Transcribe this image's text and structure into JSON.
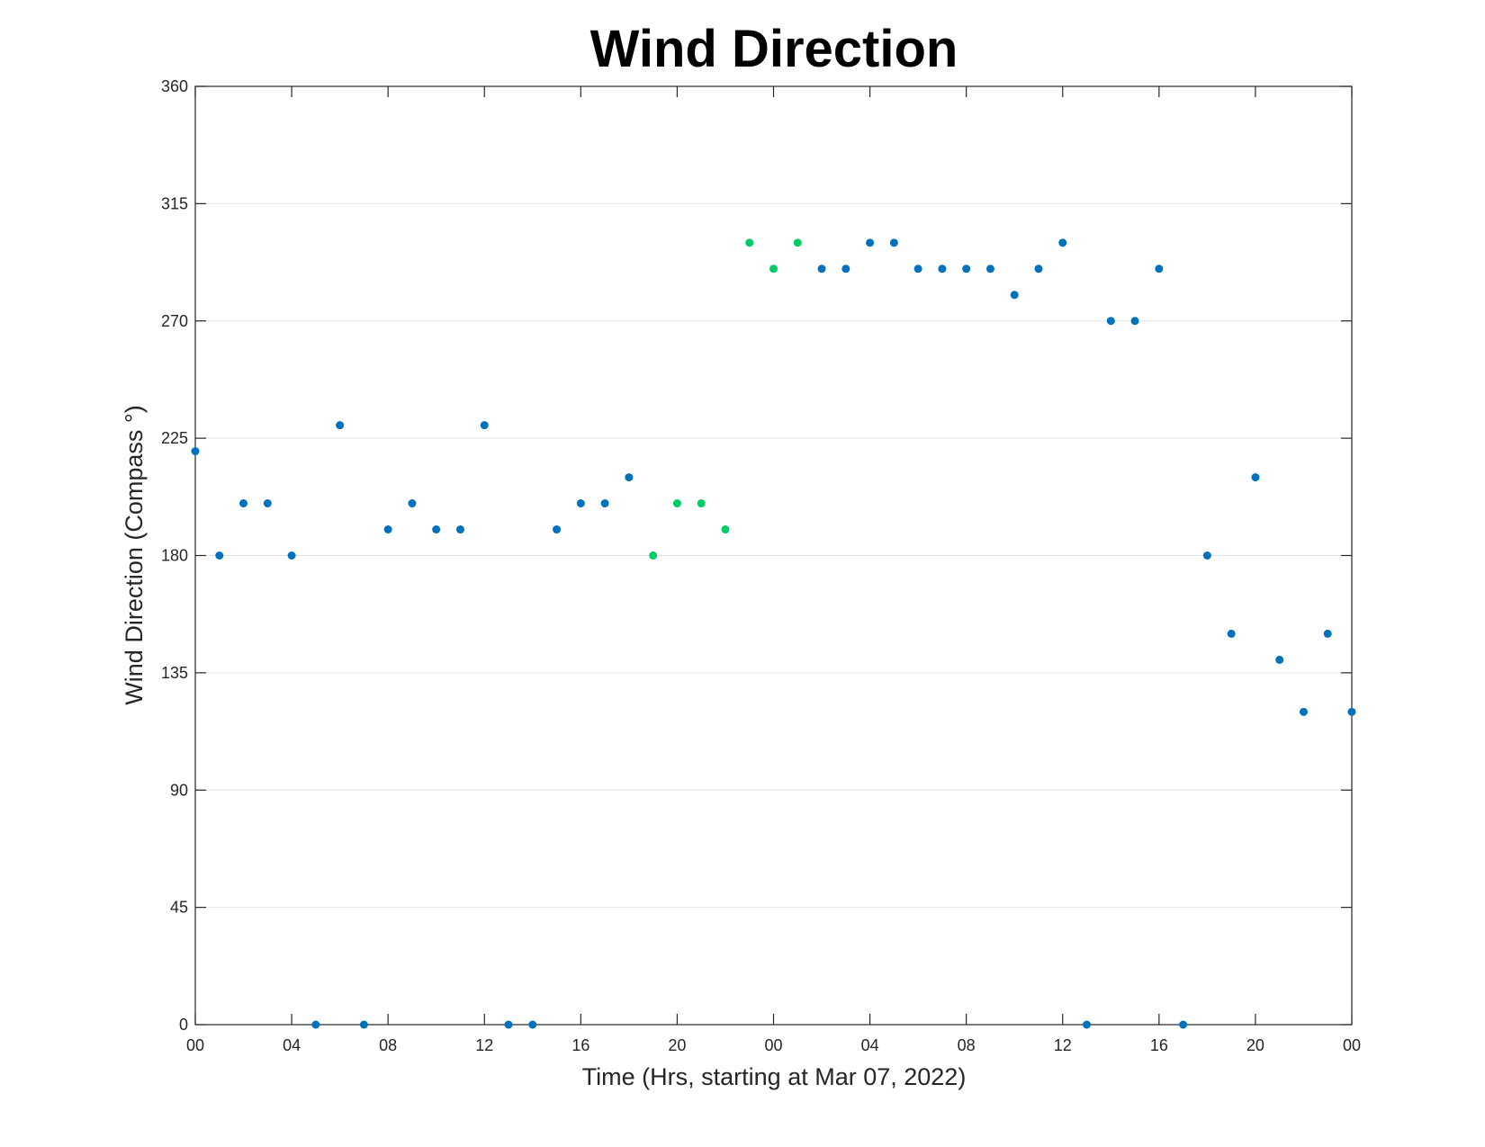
{
  "chart_data": {
    "type": "scatter",
    "title": "Wind Direction",
    "xlabel": "Time (Hrs, starting at Mar 07, 2022)",
    "ylabel": "Wind Direction (Compass °)",
    "xlim": [
      0,
      48
    ],
    "ylim": [
      0,
      360
    ],
    "x_tick_values": [
      0,
      4,
      8,
      12,
      16,
      20,
      24,
      28,
      32,
      36,
      40,
      44,
      48
    ],
    "x_tick_labels": [
      "00",
      "04",
      "08",
      "12",
      "16",
      "20",
      "00",
      "04",
      "08",
      "12",
      "16",
      "20",
      "00"
    ],
    "y_tick_values": [
      0,
      45,
      90,
      135,
      180,
      225,
      270,
      315,
      360
    ],
    "y_tick_labels": [
      "0",
      "45",
      "90",
      "135",
      "180",
      "225",
      "270",
      "315",
      "360"
    ],
    "grid": true,
    "colors": {
      "primary": "#0072bd",
      "highlight": "#00cc66"
    },
    "series": [
      {
        "color": "#0072bd",
        "points": [
          [
            0,
            220
          ],
          [
            1,
            180
          ],
          [
            2,
            200
          ],
          [
            3,
            200
          ],
          [
            4,
            180
          ],
          [
            5,
            0
          ],
          [
            6,
            230
          ],
          [
            7,
            0
          ],
          [
            8,
            190
          ],
          [
            9,
            200
          ],
          [
            10,
            190
          ],
          [
            11,
            190
          ],
          [
            12,
            230
          ],
          [
            13,
            0
          ],
          [
            14,
            0
          ],
          [
            15,
            190
          ],
          [
            16,
            200
          ],
          [
            17,
            200
          ],
          [
            18,
            210
          ],
          [
            26,
            290
          ],
          [
            27,
            290
          ],
          [
            28,
            300
          ],
          [
            29,
            300
          ],
          [
            30,
            290
          ],
          [
            31,
            290
          ],
          [
            32,
            290
          ],
          [
            33,
            290
          ],
          [
            34,
            280
          ],
          [
            35,
            290
          ],
          [
            36,
            300
          ],
          [
            37,
            0
          ],
          [
            38,
            270
          ],
          [
            39,
            270
          ],
          [
            40,
            290
          ],
          [
            41,
            0
          ],
          [
            42,
            180
          ],
          [
            43,
            150
          ],
          [
            44,
            210
          ],
          [
            45,
            140
          ],
          [
            46,
            120
          ],
          [
            47,
            150
          ],
          [
            48,
            120
          ]
        ]
      },
      {
        "color": "#00cc66",
        "points": [
          [
            19,
            180
          ],
          [
            20,
            200
          ],
          [
            21,
            200
          ],
          [
            22,
            190
          ],
          [
            23,
            300
          ],
          [
            24,
            290
          ],
          [
            25,
            300
          ]
        ]
      }
    ]
  }
}
